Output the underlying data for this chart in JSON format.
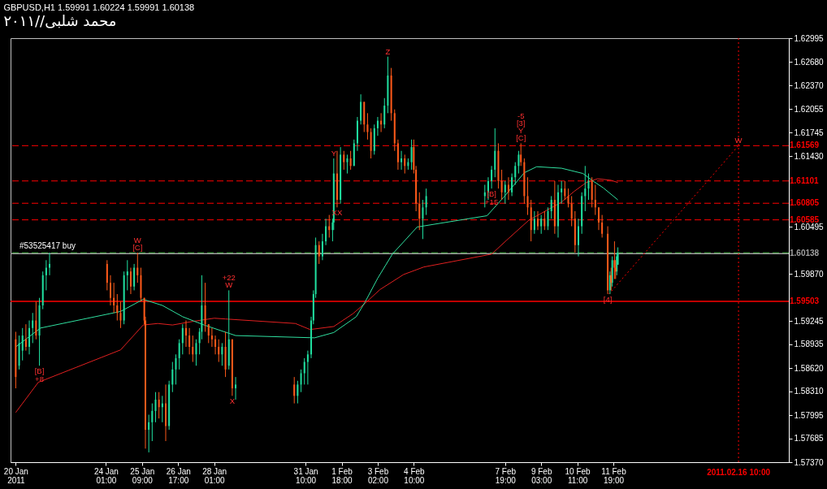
{
  "chart_data": {
    "type": "candlestick",
    "title": "GBPUSD,H1  1.59991 1.60224 1.59991 1.60138",
    "subtitle": "محمد شلبى//٢٠١١",
    "xlim": [
      "2011-01-20T16:00",
      "2011-02-18T03:00"
    ],
    "ylim": [
      1.5737,
      1.62995
    ],
    "xticks": [
      {
        "value": "2011-01-20T17:00",
        "label": "20 Jan 2011"
      },
      {
        "value": "2011-01-24T01:00",
        "label": "24 Jan 01:00"
      },
      {
        "value": "2011-01-25T09:00",
        "label": "25 Jan 09:00"
      },
      {
        "value": "2011-01-26T17:00",
        "label": "26 Jan 17:00"
      },
      {
        "value": "2011-01-28T01:00",
        "label": "28 Jan 01:00"
      },
      {
        "value": "2011-01-31T10:00",
        "label": "31 Jan 10:00"
      },
      {
        "value": "2011-02-01T18:00",
        "label": "1 Feb 18:00"
      },
      {
        "value": "2011-02-03T02:00",
        "label": "3 Feb 02:00"
      },
      {
        "value": "2011-02-04T10:00",
        "label": "4 Feb 10:00"
      },
      {
        "value": "2011-02-07T19:00",
        "label": "7 Feb 19:00"
      },
      {
        "value": "2011-02-09T03:00",
        "label": "9 Feb 03:00"
      },
      {
        "value": "2011-02-10T11:00",
        "label": "10 Feb 11:00"
      },
      {
        "value": "2011-02-11T19:00",
        "label": "11 Feb 19:00"
      }
    ],
    "yticks": [
      1.62995,
      {
        "value": 1.6268,
        "label": "1.62680"
      },
      {
        "value": 1.6237,
        "label": "1.62370"
      },
      1.62055,
      1.61745,
      {
        "value": 1.6143,
        "label": "1.61430"
      },
      1.60495,
      {
        "value": 1.5987,
        "label": "1.59870"
      },
      1.59245,
      1.58935,
      {
        "value": 1.5862,
        "label": "1.58620"
      },
      {
        "value": 1.5831,
        "label": "1.58310"
      },
      1.57995,
      1.57685,
      {
        "value": 1.5737,
        "label": "1.57370"
      }
    ],
    "series": [
      {
        "type": "line",
        "color": "#e02020",
        "x": [
          "2011-01-20T17:00",
          "2011-01-21T13:00",
          "2011-01-24T14:00",
          "2011-01-25T10:00",
          "2011-01-25T23:00",
          "2011-01-26T12:00",
          "2011-01-27T07:00",
          "2011-01-28T01:00",
          "2011-01-28T11:00",
          "2011-01-31T01:00",
          "2011-01-31T14:00",
          "2011-02-01T11:00",
          "2011-02-02T04:00",
          "2011-02-02T15:00",
          "2011-02-03T04:00",
          "2011-02-04T01:00",
          "2011-02-04T19:00",
          "2011-02-07T07:00",
          "2011-02-07T20:00",
          "2011-02-08T16:00",
          "2011-02-09T21:00",
          "2011-02-10T08:00",
          "2011-02-10T19:00",
          "2011-02-11T05:00",
          "2011-02-11T17:00",
          "2011-02-11T23:00"
        ],
        "values": [
          1.5803,
          1.5843,
          1.5886,
          1.5919,
          1.5921,
          1.5919,
          1.5924,
          1.5928,
          1.5927,
          1.5921,
          1.5913,
          1.5917,
          1.5934,
          1.5948,
          1.5966,
          1.5986,
          1.5996,
          1.6013,
          1.6031,
          1.6058,
          1.6082,
          1.6096,
          1.6108,
          1.6113,
          1.6111,
          1.6108
        ]
      },
      {
        "type": "line",
        "color": "#30e0a0",
        "x": [
          "2011-01-20T17:00",
          "2011-01-21T15:00",
          "2011-01-24T14:00",
          "2011-01-25T10:00",
          "2011-01-26T03:00",
          "2011-01-26T21:00",
          "2011-01-27T16:00",
          "2011-01-28T20:00",
          "2011-01-31T18:00",
          "2011-02-01T11:00",
          "2011-02-02T07:00",
          "2011-02-02T15:00",
          "2011-02-03T02:00",
          "2011-02-03T15:00",
          "2011-02-04T13:00",
          "2011-02-07T03:00",
          "2011-02-07T18:00",
          "2011-02-08T12:00",
          "2011-02-08T23:00",
          "2011-02-09T21:00",
          "2011-02-10T16:00",
          "2011-02-11T01:00",
          "2011-02-11T10:00",
          "2011-02-11T23:00"
        ],
        "values": [
          1.589,
          1.5915,
          1.5937,
          1.5953,
          1.5945,
          1.593,
          1.5919,
          1.5905,
          1.5902,
          1.5909,
          1.593,
          1.595,
          1.5981,
          1.6013,
          1.6049,
          1.6064,
          1.6089,
          1.6121,
          1.6129,
          1.6127,
          1.612,
          1.611,
          1.6101,
          1.6085
        ]
      },
      {
        "type": "line",
        "color": "#ff0000",
        "line_style": "dotted",
        "x": [
          "2011-02-11T15:00",
          "2011-02-16T10:00"
        ],
        "values": [
          1.596,
          1.6157
        ]
      },
      {
        "color": "#20e0a0",
        "x": [
          "2011-01-20T20:00",
          "2011-01-20T23:00",
          "2011-01-21T05:00",
          "2011-01-21T08:00",
          "2011-01-21T14:00",
          "2011-01-21T17:00",
          "2011-01-21T20:00",
          "2011-01-21T23:00",
          "2011-01-24T17:00",
          "2011-01-24T20:00",
          "2011-01-25T02:00",
          "2011-01-25T15:00",
          "2011-01-25T18:00",
          "2011-01-25T21:00",
          "2011-01-26T03:00",
          "2011-01-26T09:00",
          "2011-01-26T12:00",
          "2011-01-26T15:00",
          "2011-01-26T18:00",
          "2011-01-26T21:00",
          "2011-01-27T09:00",
          "2011-01-27T12:00",
          "2011-01-27T14:00",
          "2011-01-28T08:00",
          "2011-01-28T14:00",
          "2011-01-28T20:00",
          "2011-01-31T03:00",
          "2011-01-31T06:00",
          "2011-01-31T09:00",
          "2011-01-31T12:00",
          "2011-01-31T15:00",
          "2011-01-31T17:00",
          "2011-01-31T19:00",
          "2011-02-01T01:00",
          "2011-02-01T04:00",
          "2011-02-01T10:00",
          "2011-02-01T11:00",
          "2011-02-01T17:00",
          "2011-02-01T23:00",
          "2011-02-02T05:00",
          "2011-02-02T08:00",
          "2011-02-02T11:00",
          "2011-02-02T23:00",
          "2011-02-03T02:00",
          "2011-02-03T08:00",
          "2011-02-03T11:00",
          "2011-02-03T23:00",
          "2011-02-04T05:00",
          "2011-02-04T08:00",
          "2011-02-04T18:00",
          "2011-02-04T21:00",
          "2011-02-07T01:00",
          "2011-02-07T04:00",
          "2011-02-07T07:00",
          "2011-02-07T10:00",
          "2011-02-07T19:00",
          "2011-02-08T01:00",
          "2011-02-08T04:00",
          "2011-02-08T07:00",
          "2011-02-08T21:00",
          "2011-02-09T03:00",
          "2011-02-09T09:00",
          "2011-02-09T12:00",
          "2011-02-09T18:00",
          "2011-02-09T21:00",
          "2011-02-10T12:00",
          "2011-02-10T15:00",
          "2011-02-10T18:00",
          "2011-02-10T21:00",
          "2011-02-11T16:00",
          "2011-02-11T18:00",
          "2011-02-11T22:00",
          "2011-02-11T23:00"
        ],
        "ohlc": [
          [
            1.5865,
            1.5905,
            1.586,
            1.5895
          ],
          [
            1.5885,
            1.5915,
            1.5872,
            1.5905
          ],
          [
            1.589,
            1.5925,
            1.588,
            1.5915
          ],
          [
            1.5915,
            1.5935,
            1.5895,
            1.5925
          ],
          [
            1.5905,
            1.5955,
            1.5865,
            1.5945
          ],
          [
            1.5945,
            1.599,
            1.594,
            1.5985
          ],
          [
            1.5985,
            1.6005,
            1.5965,
            1.5995
          ],
          [
            1.5995,
            1.6015,
            1.5985,
            1.6
          ],
          [
            1.5925,
            1.599,
            1.592,
            1.5985
          ],
          [
            1.5985,
            1.6005,
            1.5965,
            1.599
          ],
          [
            1.597,
            1.6,
            1.5965,
            1.5995
          ],
          [
            1.578,
            1.58,
            1.575,
            1.579
          ],
          [
            1.579,
            1.5815,
            1.5765,
            1.5805
          ],
          [
            1.5805,
            1.583,
            1.579,
            1.582
          ],
          [
            1.581,
            1.5825,
            1.579,
            1.5815
          ],
          [
            1.5785,
            1.5845,
            1.578,
            1.584
          ],
          [
            1.584,
            1.587,
            1.583,
            1.586
          ],
          [
            1.586,
            1.588,
            1.584,
            1.5875
          ],
          [
            1.5875,
            1.59,
            1.586,
            1.5895
          ],
          [
            1.5895,
            1.592,
            1.588,
            1.5915
          ],
          [
            1.588,
            1.59,
            1.5865,
            1.5895
          ],
          [
            1.5895,
            1.5915,
            1.588,
            1.591
          ],
          [
            1.591,
            1.5985,
            1.59,
            1.5945
          ],
          [
            1.588,
            1.5895,
            1.5865,
            1.589
          ],
          [
            1.5865,
            1.5965,
            1.586,
            1.59
          ],
          [
            1.5835,
            1.585,
            1.582,
            1.584
          ],
          [
            1.5825,
            1.5845,
            1.5815,
            1.584
          ],
          [
            1.584,
            1.586,
            1.583,
            1.5855
          ],
          [
            1.5855,
            1.5875,
            1.584,
            1.587
          ],
          [
            1.587,
            1.5885,
            1.584,
            1.588
          ],
          [
            1.588,
            1.593,
            1.5875,
            1.5925
          ],
          [
            1.5925,
            1.5965,
            1.592,
            1.596
          ],
          [
            1.596,
            1.6035,
            1.5955,
            1.6025
          ],
          [
            1.601,
            1.604,
            1.6005,
            1.603
          ],
          [
            1.603,
            1.606,
            1.6025,
            1.605
          ],
          [
            1.6045,
            1.606,
            1.603,
            1.6055
          ],
          [
            1.6055,
            1.614,
            1.6045,
            1.612
          ],
          [
            1.6085,
            1.6155,
            1.608,
            1.6145
          ],
          [
            1.6135,
            1.6145,
            1.612,
            1.614
          ],
          [
            1.613,
            1.6165,
            1.613,
            1.616
          ],
          [
            1.616,
            1.6195,
            1.615,
            1.619
          ],
          [
            1.619,
            1.6225,
            1.6185,
            1.6215
          ],
          [
            1.615,
            1.6185,
            1.6145,
            1.618
          ],
          [
            1.618,
            1.6195,
            1.617,
            1.619
          ],
          [
            1.6185,
            1.622,
            1.618,
            1.621
          ],
          [
            1.621,
            1.6275,
            1.62,
            1.625
          ],
          [
            1.6135,
            1.615,
            1.6125,
            1.614
          ],
          [
            1.613,
            1.614,
            1.6125,
            1.6135
          ],
          [
            1.6135,
            1.6165,
            1.6125,
            1.6155
          ],
          [
            1.606,
            1.6085,
            1.6033,
            1.6075
          ],
          [
            1.6075,
            1.61,
            1.6065,
            1.609
          ],
          [
            1.609,
            1.6105,
            1.6075,
            1.6095
          ],
          [
            1.6095,
            1.6115,
            1.6085,
            1.611
          ],
          [
            1.611,
            1.613,
            1.61,
            1.6125
          ],
          [
            1.6125,
            1.618,
            1.6115,
            1.615
          ],
          [
            1.6095,
            1.611,
            1.608,
            1.6105
          ],
          [
            1.6095,
            1.612,
            1.609,
            1.6115
          ],
          [
            1.6115,
            1.6135,
            1.6105,
            1.613
          ],
          [
            1.613,
            1.615,
            1.612,
            1.6145
          ],
          [
            1.6045,
            1.607,
            1.604,
            1.606
          ],
          [
            1.605,
            1.6065,
            1.604,
            1.606
          ],
          [
            1.605,
            1.6075,
            1.6045,
            1.607
          ],
          [
            1.607,
            1.609,
            1.606,
            1.6085
          ],
          [
            1.605,
            1.6105,
            1.6035,
            1.6095
          ],
          [
            1.6095,
            1.611,
            1.608,
            1.61
          ],
          [
            1.6025,
            1.606,
            1.601,
            1.605
          ],
          [
            1.605,
            1.6095,
            1.604,
            1.609
          ],
          [
            1.609,
            1.613,
            1.607,
            1.61
          ],
          [
            1.61,
            1.612,
            1.6085,
            1.611
          ],
          [
            1.5965,
            1.599,
            1.596,
            1.5985
          ],
          [
            1.5975,
            1.601,
            1.597,
            1.6005
          ],
          [
            1.599,
            1.6015,
            1.5985,
            1.601
          ],
          [
            1.5999,
            1.6022,
            1.5999,
            1.6014
          ]
        ]
      },
      {
        "color": "#ff5a1a",
        "x": [
          "2011-01-20T17:00",
          "2011-01-21T02:00",
          "2011-01-21T11:00",
          "2011-01-24T02:00",
          "2011-01-24T05:00",
          "2011-01-24T08:00",
          "2011-01-24T11:00",
          "2011-01-24T14:00",
          "2011-01-24T23:00",
          "2011-01-25T05:00",
          "2011-01-25T08:00",
          "2011-01-25T11:00",
          "2011-01-25T12:00",
          "2011-01-26T00:00",
          "2011-01-26T06:00",
          "2011-01-27T00:00",
          "2011-01-27T03:00",
          "2011-01-27T06:00",
          "2011-01-27T17:00",
          "2011-01-27T20:00",
          "2011-01-27T23:00",
          "2011-01-28T02:00",
          "2011-01-28T05:00",
          "2011-01-28T11:00",
          "2011-01-28T17:00",
          "2011-01-31T00:00",
          "2011-01-31T22:00",
          "2011-02-01T07:00",
          "2011-02-01T14:00",
          "2011-02-01T20:00",
          "2011-02-02T02:00",
          "2011-02-02T14:00",
          "2011-02-02T17:00",
          "2011-02-02T20:00",
          "2011-02-03T05:00",
          "2011-02-03T14:00",
          "2011-02-03T17:00",
          "2011-02-03T20:00",
          "2011-02-04T02:00",
          "2011-02-04T10:00",
          "2011-02-04T12:00",
          "2011-02-04T15:00",
          "2011-02-07T13:00",
          "2011-02-07T16:00",
          "2011-02-07T22:00",
          "2011-02-08T09:00",
          "2011-02-08T12:00",
          "2011-02-08T15:00",
          "2011-02-08T18:00",
          "2011-02-09T00:00",
          "2011-02-09T06:00",
          "2011-02-09T15:00",
          "2011-02-10T00:00",
          "2011-02-10T03:00",
          "2011-02-10T06:00",
          "2011-02-10T09:00",
          "2011-02-11T00:00",
          "2011-02-11T03:00",
          "2011-02-11T06:00",
          "2011-02-11T09:00",
          "2011-02-11T14:00",
          "2011-02-11T17:00",
          "2011-02-11T20:00",
          "2011-02-11T21:00"
        ],
        "ohlc": [
          [
            1.59,
            1.591,
            1.5835,
            1.585
          ],
          [
            1.59,
            1.592,
            1.5885,
            1.589
          ],
          [
            1.5925,
            1.595,
            1.59,
            1.5905
          ],
          [
            1.6,
            1.6005,
            1.5965,
            1.5975
          ],
          [
            1.5975,
            1.5985,
            1.5945,
            1.5955
          ],
          [
            1.5955,
            1.5975,
            1.5935,
            1.5945
          ],
          [
            1.5945,
            1.596,
            1.5925,
            1.5935
          ],
          [
            1.5935,
            1.595,
            1.5915,
            1.5925
          ],
          [
            1.599,
            1.5995,
            1.596,
            1.597
          ],
          [
            1.5995,
            1.6015,
            1.5975,
            1.5985
          ],
          [
            1.5985,
            1.5995,
            1.595,
            1.5955
          ],
          [
            1.5955,
            1.5955,
            1.592,
            1.5925
          ],
          [
            1.5925,
            1.593,
            1.5755,
            1.578
          ],
          [
            1.582,
            1.583,
            1.5795,
            1.581
          ],
          [
            1.5815,
            1.584,
            1.5765,
            1.5785
          ],
          [
            1.5915,
            1.5925,
            1.589,
            1.5905
          ],
          [
            1.5905,
            1.5915,
            1.588,
            1.589
          ],
          [
            1.589,
            1.5905,
            1.587,
            1.588
          ],
          [
            1.5945,
            1.5975,
            1.591,
            1.592
          ],
          [
            1.592,
            1.592,
            1.5895,
            1.5905
          ],
          [
            1.5905,
            1.5915,
            1.589,
            1.59
          ],
          [
            1.59,
            1.5905,
            1.588,
            1.589
          ],
          [
            1.589,
            1.59,
            1.587,
            1.588
          ],
          [
            1.589,
            1.591,
            1.585,
            1.586
          ],
          [
            1.59,
            1.59,
            1.5825,
            1.5835
          ],
          [
            1.584,
            1.585,
            1.5815,
            1.5825
          ],
          [
            1.6025,
            1.603,
            1.6,
            1.601
          ],
          [
            1.605,
            1.6065,
            1.6035,
            1.6045
          ],
          [
            1.612,
            1.615,
            1.6075,
            1.6085
          ],
          [
            1.6145,
            1.615,
            1.6125,
            1.6135
          ],
          [
            1.614,
            1.615,
            1.6125,
            1.613
          ],
          [
            1.6215,
            1.6215,
            1.6175,
            1.6185
          ],
          [
            1.6185,
            1.62,
            1.6165,
            1.6175
          ],
          [
            1.6175,
            1.618,
            1.614,
            1.615
          ],
          [
            1.619,
            1.62,
            1.6175,
            1.6185
          ],
          [
            1.625,
            1.626,
            1.619,
            1.62
          ],
          [
            1.62,
            1.6205,
            1.615,
            1.616
          ],
          [
            1.616,
            1.6165,
            1.6125,
            1.6135
          ],
          [
            1.614,
            1.6145,
            1.612,
            1.613
          ],
          [
            1.6155,
            1.6165,
            1.612,
            1.6125
          ],
          [
            1.6125,
            1.613,
            1.607,
            1.608
          ],
          [
            1.608,
            1.6095,
            1.6045,
            1.606
          ],
          [
            1.615,
            1.616,
            1.61,
            1.611
          ],
          [
            1.611,
            1.6125,
            1.6085,
            1.6095
          ],
          [
            1.6105,
            1.6115,
            1.6085,
            1.6095
          ],
          [
            1.6145,
            1.616,
            1.613,
            1.6135
          ],
          [
            1.6135,
            1.614,
            1.608,
            1.609
          ],
          [
            1.609,
            1.6115,
            1.6065,
            1.6075
          ],
          [
            1.6075,
            1.6085,
            1.603,
            1.6045
          ],
          [
            1.606,
            1.607,
            1.6045,
            1.605
          ],
          [
            1.606,
            1.607,
            1.6045,
            1.605
          ],
          [
            1.6085,
            1.611,
            1.604,
            1.605
          ],
          [
            1.61,
            1.611,
            1.6085,
            1.609
          ],
          [
            1.609,
            1.61,
            1.6075,
            1.608
          ],
          [
            1.608,
            1.609,
            1.605,
            1.606
          ],
          [
            1.606,
            1.607,
            1.6015,
            1.6025
          ],
          [
            1.611,
            1.6115,
            1.6075,
            1.6085
          ],
          [
            1.6085,
            1.6105,
            1.6065,
            1.6075
          ],
          [
            1.6075,
            1.6075,
            1.6045,
            1.6055
          ],
          [
            1.6055,
            1.6065,
            1.6035,
            1.604
          ],
          [
            1.604,
            1.605,
            1.596,
            1.5965
          ],
          [
            1.5985,
            1.5995,
            1.5965,
            1.5975
          ],
          [
            1.6005,
            1.603,
            1.598,
            1.5995
          ],
          [
            1.5995,
            1.6005,
            1.598,
            1.599
          ]
        ]
      }
    ],
    "ref_lines": [
      {
        "axis": "y",
        "value": 1.61569,
        "label": "1.61569",
        "color": "#ff0000",
        "line_style": "dashed"
      },
      {
        "axis": "y",
        "value": 1.61101,
        "label": "1.61101",
        "color": "#ff0000",
        "line_style": "dashed"
      },
      {
        "axis": "y",
        "value": 1.60805,
        "label": "1.60805",
        "color": "#ff0000",
        "line_style": "dashed"
      },
      {
        "axis": "y",
        "value": 1.60585,
        "label": "1.60585",
        "color": "#ff0000",
        "line_style": "dashed"
      },
      {
        "axis": "y",
        "value": 1.60148,
        "label": "#53525417 buy",
        "color": "#20c020",
        "line_style": "dashed"
      },
      {
        "axis": "y",
        "value": 1.60138,
        "label": "1.60138",
        "color": "#a0a0a0",
        "line_style": "solid"
      },
      {
        "axis": "y",
        "value": 1.59503,
        "label": "1.59503",
        "color": "#ff0000",
        "line_style": "solid"
      },
      {
        "axis": "x",
        "value": "2011-02-16T10:00",
        "label": "2011.02.16 10:00",
        "color": "#ff0000",
        "line_style": "dotted"
      }
    ],
    "annotations": [
      {
        "text": "[C]",
        "x": "2011-01-25T05:00",
        "y": 1.6015
      },
      {
        "text": "W",
        "x": "2011-01-25T05:00",
        "y": 1.6015
      },
      {
        "text": "[B]",
        "x": "2011-01-21T14:00",
        "y": 1.5865
      },
      {
        "text": "+8",
        "x": "2011-01-21T14:00",
        "y": 1.5865
      },
      {
        "text": "W",
        "x": "2011-01-28T14:00",
        "y": 1.5965
      },
      {
        "text": "+22",
        "x": "2011-01-28T14:00",
        "y": 1.5965
      },
      {
        "text": "X",
        "x": "2011-01-28T17:00",
        "y": 1.5825
      },
      {
        "text": "Y",
        "x": "2011-02-01T11:00",
        "y": 1.614
      },
      {
        "text": "XX",
        "x": "2011-02-01T14:00",
        "y": 1.6075
      },
      {
        "text": "Z",
        "x": "2011-02-03T11:00",
        "y": 1.6275
      },
      {
        "text": "[C]",
        "x": "2011-02-08T09:00",
        "y": 1.616
      },
      {
        "text": "Y",
        "x": "2011-02-08T09:00",
        "y": 1.616
      },
      {
        "text": "[3]",
        "x": "2011-02-08T09:00",
        "y": 1.616
      },
      {
        "text": "-5",
        "x": "2011-02-08T09:00",
        "y": 1.616
      },
      {
        "text": "[B]",
        "x": "2011-02-07T07:00",
        "y": 1.61
      },
      {
        "text": "+15",
        "x": "2011-02-07T07:00",
        "y": 1.61
      },
      {
        "text": "[4]",
        "x": "2011-02-11T14:00",
        "y": 1.596
      },
      {
        "text": "W",
        "x": "2011-02-16T10:00",
        "y": 1.6157
      }
    ]
  }
}
